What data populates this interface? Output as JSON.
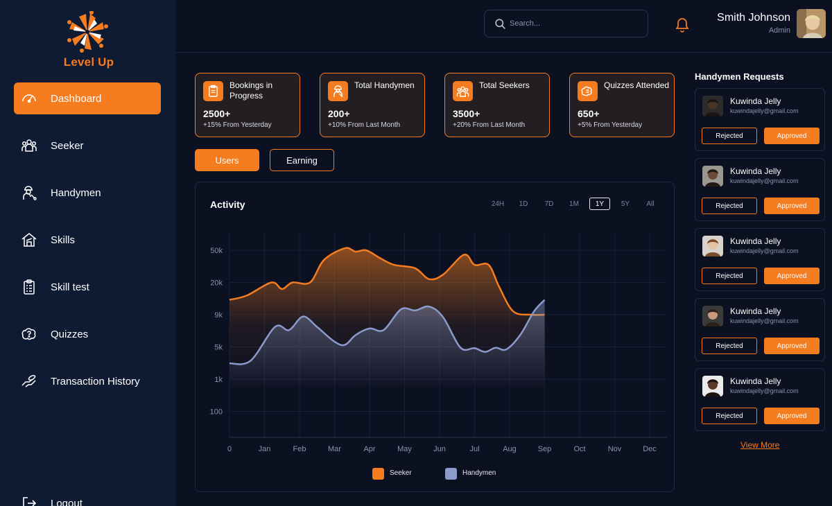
{
  "brand": {
    "name": "Level Up",
    "accent": "#f57c1f"
  },
  "sidebar": {
    "items": [
      {
        "label": "Dashboard",
        "icon": "gauge-icon",
        "active": true
      },
      {
        "label": "Seeker",
        "icon": "people-group-icon"
      },
      {
        "label": "Handymen",
        "icon": "worker-wrench-icon"
      },
      {
        "label": "Skills",
        "icon": "house-tools-icon"
      },
      {
        "label": "Skill test",
        "icon": "clipboard-checklist-icon"
      },
      {
        "label": "Quizzes",
        "icon": "brain-question-icon"
      },
      {
        "label": "Transaction History",
        "icon": "hand-money-icon"
      }
    ],
    "logout": "Logout"
  },
  "header": {
    "search_placeholder": "Search...",
    "user": {
      "name": "Smith Johnson",
      "role": "Admin"
    }
  },
  "stats": [
    {
      "title": "Bookings in Progress",
      "value": "2500+",
      "sub": "+15% From Yesterday",
      "icon": "clipboard-icon"
    },
    {
      "title": "Total Handymen",
      "value": "200+",
      "sub": "+10% From Last Month",
      "icon": "worker-icon"
    },
    {
      "title": "Total Seekers",
      "value": "3500+",
      "sub": "+20% From Last Month",
      "icon": "group-icon"
    },
    {
      "title": "Quizzes Attended",
      "value": "650+",
      "sub": "+5% From Yesterday",
      "icon": "brain-icon"
    }
  ],
  "tabs": [
    {
      "label": "Users",
      "active": true
    },
    {
      "label": "Earning",
      "active": false
    }
  ],
  "activity": {
    "title": "Activity",
    "ranges": [
      "24H",
      "1D",
      "7D",
      "1M",
      "1Y",
      "5Y",
      "All"
    ],
    "active_range": "1Y"
  },
  "chart_data": {
    "type": "area",
    "title": "Activity",
    "x": [
      "0",
      "Jan",
      "Feb",
      "Mar",
      "Apr",
      "May",
      "Jun",
      "Jul",
      "Aug",
      "Sep",
      "Oct",
      "Nov",
      "Dec"
    ],
    "y_ticks": [
      "100",
      "1k",
      "5k",
      "9k",
      "20k",
      "50k"
    ],
    "scale": "categorical-log",
    "series": [
      {
        "name": "Seeker",
        "color": "#f57c1f",
        "points": [
          [
            0,
            13000
          ],
          [
            0.5,
            14500
          ],
          [
            1.2,
            20000
          ],
          [
            1.5,
            17000
          ],
          [
            1.8,
            20000
          ],
          [
            2.3,
            20000
          ],
          [
            2.7,
            38000
          ],
          [
            3.3,
            53000
          ],
          [
            3.6,
            48000
          ],
          [
            3.9,
            50000
          ],
          [
            4.3,
            40000
          ],
          [
            4.7,
            33000
          ],
          [
            5.3,
            30000
          ],
          [
            5.7,
            22000
          ],
          [
            6.1,
            25000
          ],
          [
            6.7,
            44000
          ],
          [
            7.0,
            33000
          ],
          [
            7.4,
            33000
          ],
          [
            7.7,
            18000
          ],
          [
            8.1,
            9800
          ],
          [
            8.6,
            9000
          ],
          [
            9.0,
            9000
          ]
        ]
      },
      {
        "name": "Handymen",
        "color": "#8b9bcb",
        "points": [
          [
            0,
            2200
          ],
          [
            0.6,
            2500
          ],
          [
            1.3,
            7200
          ],
          [
            1.7,
            6800
          ],
          [
            2.1,
            8700
          ],
          [
            2.5,
            7200
          ],
          [
            3.0,
            5500
          ],
          [
            3.3,
            5200
          ],
          [
            3.6,
            6200
          ],
          [
            4.0,
            7000
          ],
          [
            4.4,
            6800
          ],
          [
            4.9,
            10300
          ],
          [
            5.3,
            10000
          ],
          [
            5.7,
            11000
          ],
          [
            6.1,
            8600
          ],
          [
            6.6,
            4800
          ],
          [
            7.0,
            4700
          ],
          [
            7.3,
            3900
          ],
          [
            7.6,
            4800
          ],
          [
            7.9,
            4400
          ],
          [
            8.3,
            6200
          ],
          [
            8.7,
            9800
          ],
          [
            9.0,
            13000
          ]
        ]
      }
    ],
    "legend": [
      "Seeker",
      "Handymen"
    ],
    "legend_position": "bottom",
    "grid": true
  },
  "requests": {
    "title": "Handymen Requests",
    "items": [
      {
        "name": "Kuwinda Jelly",
        "email": "kuwindajelly@gmail.com",
        "reject": "Rejected",
        "approve": "Approved",
        "skin": "#4b3324",
        "hair": "#1a1513",
        "bg": "#2b2b2b"
      },
      {
        "name": "Kuwinda Jelly",
        "email": "kuwindajelly@gmail.com",
        "reject": "Rejected",
        "approve": "Approved",
        "skin": "#6a4a38",
        "hair": "#241a15",
        "bg": "#9a9791"
      },
      {
        "name": "Kuwinda Jelly",
        "email": "kuwindajelly@gmail.com",
        "reject": "Rejected",
        "approve": "Approved",
        "skin": "#e6c2a3",
        "hair": "#7a4b2a",
        "bg": "#d8d4cd"
      },
      {
        "name": "Kuwinda Jelly",
        "email": "kuwindajelly@gmail.com",
        "reject": "Rejected",
        "approve": "Approved",
        "skin": "#c99a7c",
        "hair": "#2b201b",
        "bg": "#3a3a3a"
      },
      {
        "name": "Kuwinda Jelly",
        "email": "kuwindajelly@gmail.com",
        "reject": "Rejected",
        "approve": "Approved",
        "skin": "#5a3a28",
        "hair": "#1b1410",
        "bg": "#eaeaea"
      }
    ],
    "view_more": "View More"
  }
}
